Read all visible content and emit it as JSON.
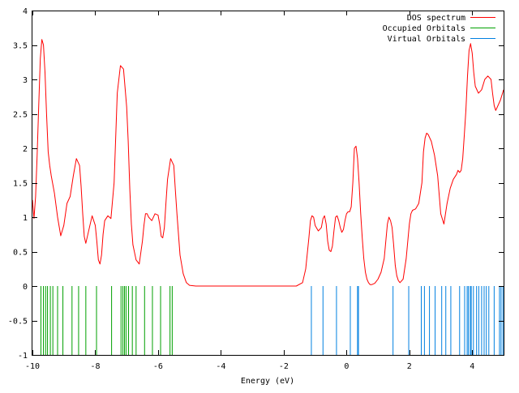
{
  "chart_data": {
    "type": "line",
    "title": "",
    "xlabel": "Energy (eV)",
    "ylabel": "",
    "xlim": [
      -10,
      5
    ],
    "ylim": [
      -1,
      4
    ],
    "grid": false,
    "legend_position": "top-right",
    "x_ticks": [
      -10,
      -8,
      -6,
      -4,
      -2,
      0,
      2,
      4
    ],
    "y_ticks": [
      -1,
      -0.5,
      0,
      0.5,
      1,
      1.5,
      2,
      2.5,
      3,
      3.5,
      4
    ],
    "x_tick_labels": [
      "-10",
      "-8",
      "-6",
      "-4",
      "-2",
      "0",
      "2",
      "4"
    ],
    "y_tick_labels": [
      "-1",
      "-0.5",
      "0",
      "0.5",
      "1",
      "1.5",
      "2",
      "2.5",
      "3",
      "3.5",
      "4"
    ],
    "series": [
      {
        "name": "DOS spectrum",
        "color": "#ff0000",
        "x": [
          -10.0,
          -9.95,
          -9.9,
          -9.85,
          -9.8,
          -9.75,
          -9.7,
          -9.65,
          -9.6,
          -9.55,
          -9.5,
          -9.45,
          -9.4,
          -9.3,
          -9.2,
          -9.1,
          -9.0,
          -8.9,
          -8.8,
          -8.7,
          -8.6,
          -8.5,
          -8.45,
          -8.4,
          -8.35,
          -8.3,
          -8.2,
          -8.1,
          -8.0,
          -7.95,
          -7.9,
          -7.85,
          -7.8,
          -7.75,
          -7.7,
          -7.6,
          -7.5,
          -7.4,
          -7.3,
          -7.2,
          -7.1,
          -7.0,
          -6.95,
          -6.9,
          -6.85,
          -6.8,
          -6.7,
          -6.6,
          -6.5,
          -6.45,
          -6.4,
          -6.35,
          -6.3,
          -6.2,
          -6.1,
          -6.0,
          -5.95,
          -5.9,
          -5.85,
          -5.8,
          -5.75,
          -5.7,
          -5.6,
          -5.5,
          -5.45,
          -5.4,
          -5.35,
          -5.3,
          -5.2,
          -5.1,
          -5.0,
          -4.8,
          -4.0,
          -3.0,
          -2.0,
          -1.6,
          -1.4,
          -1.3,
          -1.2,
          -1.15,
          -1.1,
          -1.05,
          -1.0,
          -0.9,
          -0.8,
          -0.75,
          -0.7,
          -0.65,
          -0.6,
          -0.55,
          -0.5,
          -0.45,
          -0.4,
          -0.35,
          -0.3,
          -0.25,
          -0.2,
          -0.15,
          -0.1,
          -0.05,
          0.0,
          0.05,
          0.1,
          0.15,
          0.2,
          0.25,
          0.3,
          0.35,
          0.4,
          0.45,
          0.5,
          0.55,
          0.6,
          0.65,
          0.7,
          0.75,
          0.8,
          0.9,
          1.0,
          1.1,
          1.2,
          1.3,
          1.35,
          1.4,
          1.45,
          1.5,
          1.55,
          1.6,
          1.65,
          1.7,
          1.8,
          1.9,
          2.0,
          2.05,
          2.1,
          2.2,
          2.3,
          2.4,
          2.45,
          2.5,
          2.55,
          2.6,
          2.7,
          2.8,
          2.9,
          3.0,
          3.1,
          3.2,
          3.3,
          3.4,
          3.5,
          3.55,
          3.6,
          3.65,
          3.7,
          3.75,
          3.8,
          3.85,
          3.9,
          3.95,
          4.0,
          4.05,
          4.1,
          4.2,
          4.3,
          4.4,
          4.5,
          4.6,
          4.65,
          4.7,
          4.75,
          4.8,
          4.9,
          5.0
        ],
        "y": [
          1.25,
          0.98,
          1.3,
          1.9,
          2.6,
          3.3,
          3.58,
          3.5,
          3.1,
          2.5,
          1.95,
          1.75,
          1.6,
          1.35,
          1.0,
          0.73,
          0.88,
          1.2,
          1.3,
          1.6,
          1.85,
          1.75,
          1.45,
          1.05,
          0.72,
          0.62,
          0.82,
          1.02,
          0.88,
          0.65,
          0.38,
          0.32,
          0.45,
          0.75,
          0.95,
          1.02,
          0.98,
          1.5,
          2.8,
          3.2,
          3.15,
          2.6,
          2.1,
          1.4,
          0.9,
          0.6,
          0.38,
          0.32,
          0.65,
          0.88,
          1.05,
          1.05,
          1.0,
          0.95,
          1.05,
          1.03,
          0.9,
          0.72,
          0.7,
          0.85,
          1.2,
          1.55,
          1.85,
          1.75,
          1.4,
          1.05,
          0.75,
          0.45,
          0.18,
          0.05,
          0.01,
          0.0,
          0.0,
          0.0,
          0.0,
          0.0,
          0.05,
          0.25,
          0.7,
          0.95,
          1.02,
          1.0,
          0.88,
          0.8,
          0.85,
          0.98,
          1.02,
          0.9,
          0.65,
          0.52,
          0.5,
          0.58,
          0.8,
          1.0,
          1.02,
          0.95,
          0.85,
          0.78,
          0.82,
          0.95,
          1.05,
          1.08,
          1.08,
          1.15,
          1.5,
          2.0,
          2.03,
          1.85,
          1.5,
          1.05,
          0.7,
          0.4,
          0.2,
          0.1,
          0.05,
          0.02,
          0.02,
          0.04,
          0.1,
          0.2,
          0.4,
          0.9,
          1.0,
          0.95,
          0.85,
          0.6,
          0.3,
          0.15,
          0.08,
          0.05,
          0.1,
          0.4,
          0.9,
          1.05,
          1.1,
          1.12,
          1.2,
          1.5,
          1.95,
          2.15,
          2.22,
          2.2,
          2.1,
          1.9,
          1.6,
          1.05,
          0.9,
          1.2,
          1.42,
          1.55,
          1.62,
          1.68,
          1.65,
          1.68,
          1.85,
          2.2,
          2.55,
          3.05,
          3.42,
          3.52,
          3.38,
          3.1,
          2.9,
          2.8,
          2.85,
          3.0,
          3.05,
          3.0,
          2.8,
          2.62,
          2.55,
          2.6,
          2.7,
          2.85
        ]
      },
      {
        "name": "Occupied Orbitals",
        "color": "#00a000",
        "type": "impulse",
        "baseline": -1,
        "x": [
          -9.73,
          -9.65,
          -9.58,
          -9.52,
          -9.43,
          -9.35,
          -9.2,
          -9.03,
          -8.74,
          -8.53,
          -8.3,
          -7.96,
          -7.48,
          -7.18,
          -7.12,
          -7.07,
          -7.02,
          -6.94,
          -6.82,
          -6.7,
          -6.43,
          -6.18,
          -5.92,
          -5.62,
          -5.55
        ],
        "values": [
          0,
          0,
          0,
          0,
          0,
          0,
          0,
          0,
          0,
          0,
          0,
          0,
          0,
          0,
          0,
          0,
          0,
          0,
          0,
          0,
          0,
          0,
          0,
          0,
          0
        ]
      },
      {
        "name": "Virtual Orbitals",
        "color": "#0080e0",
        "type": "impulse",
        "baseline": -1,
        "x": [
          -1.12,
          -0.75,
          -0.32,
          0.12,
          0.35,
          0.38,
          1.48,
          1.98,
          2.38,
          2.48,
          2.64,
          2.82,
          3.03,
          3.16,
          3.32,
          3.6,
          3.76,
          3.84,
          3.88,
          3.94,
          3.97,
          4.04,
          4.14,
          4.21,
          4.3,
          4.38,
          4.45,
          4.53,
          4.7,
          4.87,
          4.92,
          4.98
        ],
        "values": [
          0,
          0,
          0,
          0,
          0,
          0,
          0,
          0,
          0,
          0,
          0,
          0,
          0,
          0,
          0,
          0,
          0,
          0,
          0,
          0,
          0,
          0,
          0,
          0,
          0,
          0,
          0,
          0,
          0,
          0,
          0,
          0
        ]
      }
    ]
  }
}
